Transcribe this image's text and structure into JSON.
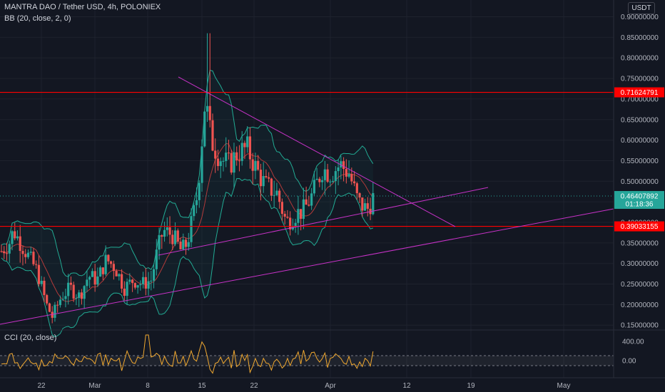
{
  "header": {
    "title": "MANTRA DAO / Tether USD, 4h, POLONIEX",
    "indicator": "BB (20, close, 2, 0)",
    "currency": "USDT"
  },
  "cci": {
    "label": "CCI (20, close)",
    "ticks": [
      "400.00",
      "0.00"
    ]
  },
  "price_labels": {
    "resistance": "0.71624791",
    "current": "0.46407892",
    "countdown": "01:18:36",
    "support": "0.39033155"
  },
  "colors": {
    "background": "#131722",
    "up": "#26a69a",
    "down": "#ef5350",
    "bb_band": "#22ab94",
    "bb_basis": "#b23a3a",
    "hline": "#ff0000",
    "trend": "#c832c8",
    "cci": "#f0a830"
  },
  "chart_data": {
    "type": "candlestick",
    "ylim": [
      0.14,
      0.92
    ],
    "yticks": [
      "0.90000000",
      "0.85000000",
      "0.80000000",
      "0.75000000",
      "0.70000000",
      "0.65000000",
      "0.60000000",
      "0.55000000",
      "0.50000000",
      "0.45000000",
      "0.40000000",
      "0.35000000",
      "0.30000000",
      "0.25000000",
      "0.20000000",
      "0.15000000"
    ],
    "xticks": [
      "22",
      "Mar",
      "8",
      "15",
      "22",
      "Apr",
      "12",
      "19",
      "May"
    ],
    "horizontal_lines": [
      0.71624791,
      0.39033155
    ],
    "price_path": [
      [
        0.0,
        0.33
      ],
      [
        0.013,
        0.35
      ],
      [
        0.02,
        0.38
      ],
      [
        0.04,
        0.33
      ],
      [
        0.06,
        0.28
      ],
      [
        0.075,
        0.2
      ],
      [
        0.085,
        0.17
      ],
      [
        0.1,
        0.22
      ],
      [
        0.115,
        0.24
      ],
      [
        0.13,
        0.22
      ],
      [
        0.145,
        0.27
      ],
      [
        0.16,
        0.26
      ],
      [
        0.175,
        0.31
      ],
      [
        0.19,
        0.29
      ],
      [
        0.205,
        0.24
      ],
      [
        0.22,
        0.26
      ],
      [
        0.235,
        0.25
      ],
      [
        0.25,
        0.26
      ],
      [
        0.26,
        0.33
      ],
      [
        0.27,
        0.38
      ],
      [
        0.285,
        0.37
      ],
      [
        0.3,
        0.33
      ],
      [
        0.31,
        0.35
      ],
      [
        0.325,
        0.45
      ],
      [
        0.33,
        0.52
      ],
      [
        0.34,
        0.7
      ],
      [
        0.35,
        0.6
      ],
      [
        0.36,
        0.57
      ],
      [
        0.37,
        0.55
      ],
      [
        0.38,
        0.54
      ],
      [
        0.395,
        0.57
      ],
      [
        0.41,
        0.58
      ],
      [
        0.425,
        0.53
      ],
      [
        0.44,
        0.49
      ],
      [
        0.46,
        0.47
      ],
      [
        0.475,
        0.4
      ],
      [
        0.49,
        0.42
      ],
      [
        0.505,
        0.43
      ],
      [
        0.52,
        0.47
      ],
      [
        0.535,
        0.53
      ],
      [
        0.55,
        0.52
      ],
      [
        0.565,
        0.54
      ],
      [
        0.58,
        0.52
      ],
      [
        0.595,
        0.45
      ],
      [
        0.61,
        0.43
      ],
      [
        0.62,
        0.46
      ]
    ]
  }
}
